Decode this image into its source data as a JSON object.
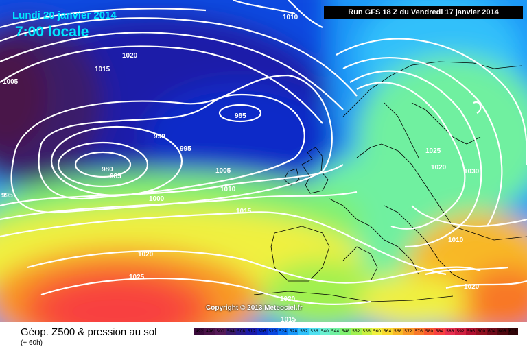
{
  "header": {
    "date": "Lundi 20 janvier 2014",
    "time": "7:00 locale",
    "run": "Run GFS 18 Z du Vendredi 17 janvier 2014"
  },
  "copyright": "Copyright © 2013 Meteociel.fr",
  "footer": {
    "title": "Géop. Z500 & pression au sol",
    "subtitle": "(+ 60h)"
  },
  "scale": {
    "labels": [
      "492",
      "496",
      "500",
      "504",
      "508",
      "512",
      "516",
      "520",
      "524",
      "528",
      "532",
      "536",
      "540",
      "544",
      "548",
      "552",
      "556",
      "560",
      "564",
      "568",
      "572",
      "576",
      "580",
      "584",
      "588",
      "592",
      "596",
      "600",
      "604",
      "608",
      "612"
    ],
    "colors": [
      "#3a0a3a",
      "#4a1248",
      "#561a58",
      "#3a1a6a",
      "#2a1a88",
      "#1a1aa8",
      "#0a2ac8",
      "#0a48e0",
      "#0a70f0",
      "#1a98f8",
      "#30c0fa",
      "#50e0f0",
      "#6af0d0",
      "#70f0a0",
      "#80f070",
      "#a0f050",
      "#c8f040",
      "#f0f040",
      "#f8d830",
      "#f8b828",
      "#f89828",
      "#f87828",
      "#f85830",
      "#f84040",
      "#e83050",
      "#d02040",
      "#b01030",
      "#901020",
      "#700a1a",
      "#500810",
      "#300408"
    ]
  },
  "isobars": [
    "1010",
    "1005",
    "1020",
    "1015",
    "985",
    "990",
    "995",
    "980",
    "985",
    "1005",
    "1010",
    "995",
    "1000",
    "1015",
    "1025",
    "1020",
    "1030",
    "1010",
    "1020",
    "1025",
    "1020",
    "1020",
    "1015"
  ]
}
